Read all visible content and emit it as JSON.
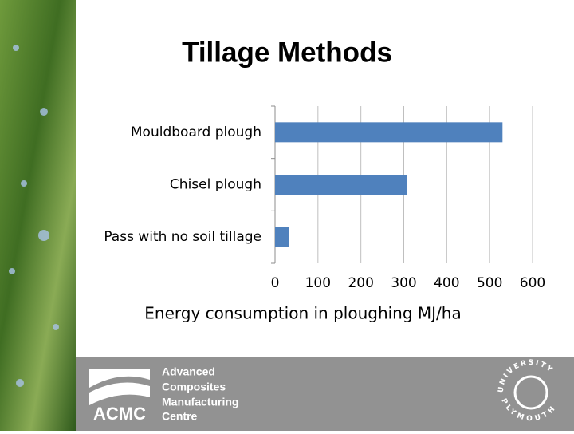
{
  "chart_data": {
    "type": "bar",
    "orientation": "horizontal",
    "title": "Tillage Methods",
    "categories": [
      "Mouldboard plough",
      "Chisel plough",
      "Pass with no soil tillage"
    ],
    "values": [
      530,
      308,
      32
    ],
    "color": "#4f81bd",
    "xlim": [
      0,
      600
    ],
    "xticks": [
      0,
      100,
      200,
      300,
      400,
      500,
      600
    ],
    "grid": true,
    "x_label": "Energy consumption in ploughing MJ/ha"
  },
  "footer": {
    "logo": "ACMC",
    "lines": [
      "Advanced",
      "Composites",
      "Manufacturing",
      "Centre"
    ],
    "university": "UNIVERSITY",
    "city": "PLYMOUTH"
  }
}
